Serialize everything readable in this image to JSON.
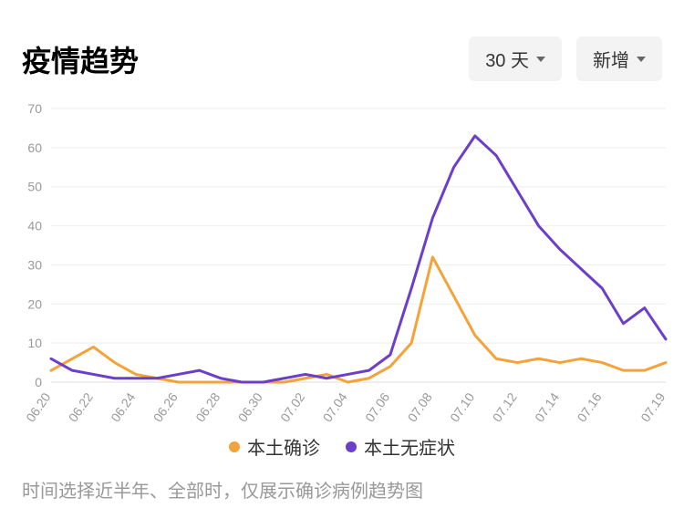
{
  "header": {
    "title": "疫情趋势",
    "dropdown_period": "30 天",
    "dropdown_metric": "新增"
  },
  "chart": {
    "type": "line",
    "background_color": "#ffffff",
    "grid_color": "#eeeeee",
    "axis_color": "#dddddd",
    "tick_font_size": 14,
    "tick_color": "#999999",
    "ylim": [
      0,
      70
    ],
    "ytick_step": 10,
    "yticks": [
      0,
      10,
      20,
      30,
      40,
      50,
      60,
      70
    ],
    "x_labels": [
      "06.20",
      "06.22",
      "06.24",
      "06.26",
      "06.28",
      "06.30",
      "07.02",
      "07.04",
      "07.06",
      "07.08",
      "07.10",
      "07.12",
      "07.14",
      "07.16",
      "07.19"
    ],
    "x_dates": [
      "06.20",
      "06.21",
      "06.22",
      "06.23",
      "06.24",
      "06.25",
      "06.26",
      "06.27",
      "06.28",
      "06.29",
      "06.30",
      "07.01",
      "07.02",
      "07.03",
      "07.04",
      "07.05",
      "07.06",
      "07.07",
      "07.08",
      "07.09",
      "07.10",
      "07.11",
      "07.12",
      "07.13",
      "07.14",
      "07.15",
      "07.16",
      "07.17",
      "07.18",
      "07.19"
    ],
    "series": [
      {
        "name": "本土确诊",
        "color": "#f2a33a",
        "line_width": 3,
        "values": [
          3,
          6,
          9,
          5,
          2,
          1,
          0,
          0,
          0,
          0,
          0,
          0,
          1,
          2,
          0,
          1,
          4,
          10,
          32,
          22,
          12,
          6,
          5,
          6,
          5,
          6,
          5,
          3,
          3,
          5
        ]
      },
      {
        "name": "本土无症状",
        "color": "#6b3fc9",
        "line_width": 3,
        "values": [
          6,
          3,
          2,
          1,
          1,
          1,
          2,
          3,
          1,
          0,
          0,
          1,
          2,
          1,
          2,
          3,
          7,
          24,
          42,
          55,
          63,
          58,
          49,
          40,
          34,
          29,
          24,
          15,
          19,
          11
        ]
      }
    ]
  },
  "legend": {
    "items": [
      {
        "label": "本土确诊",
        "color": "#f2a33a"
      },
      {
        "label": "本土无症状",
        "color": "#6b3fc9"
      }
    ]
  },
  "footnote": "时间选择近半年、全部时，仅展示确诊病例趋势图"
}
